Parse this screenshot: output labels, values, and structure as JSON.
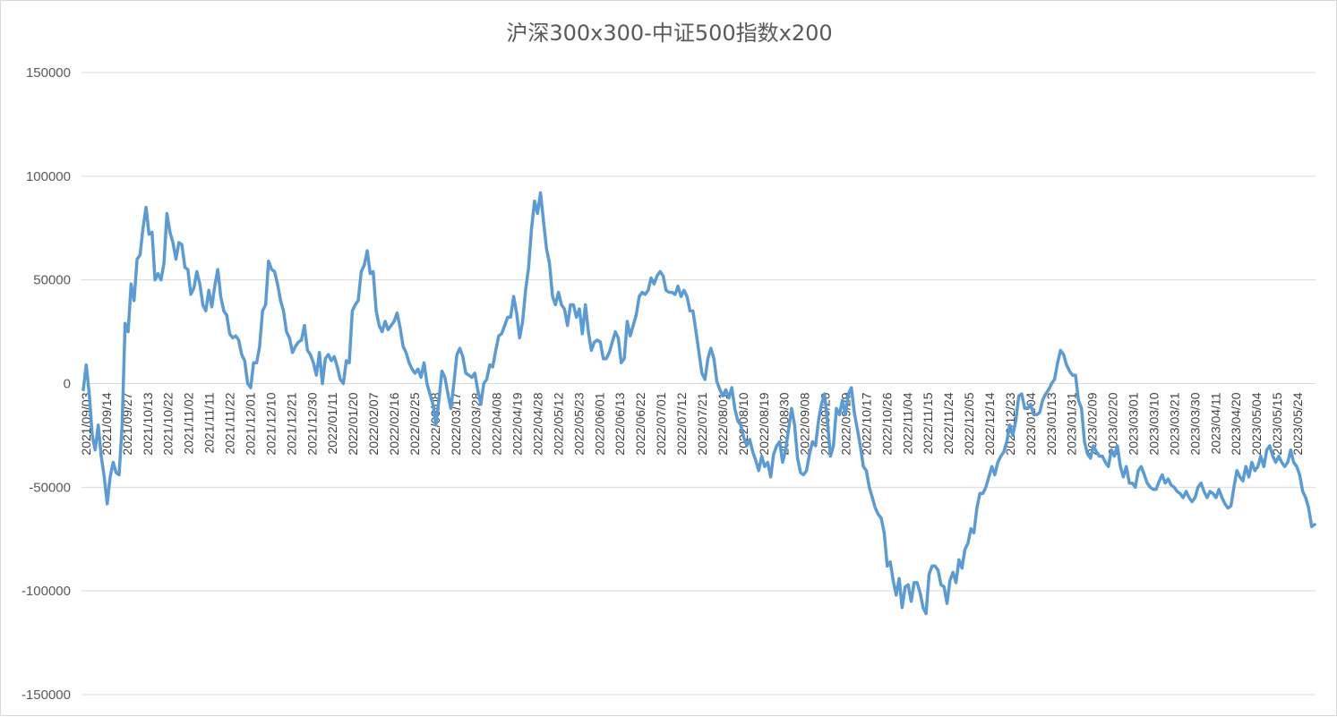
{
  "chart_data": {
    "type": "line",
    "title": "沪深300x300-中证500指数x200",
    "xlabel": "",
    "ylabel": "",
    "ylim": [
      -150000,
      150000
    ],
    "yticks": [
      150000,
      100000,
      50000,
      0,
      -50000,
      -100000,
      -150000
    ],
    "grid": true,
    "legend": "none",
    "x_tick_labels": [
      "2021/09/03",
      "2021/09/14",
      "2021/09/27",
      "2021/10/13",
      "2021/10/22",
      "2021/11/02",
      "2021/11/11",
      "2021/11/22",
      "2021/12/01",
      "2021/12/10",
      "2021/12/21",
      "2021/12/30",
      "2022/01/11",
      "2022/01/20",
      "2022/02/07",
      "2022/02/16",
      "2022/02/25",
      "2022/03/08",
      "2022/03/17",
      "2022/03/28",
      "2022/04/08",
      "2022/04/19",
      "2022/04/28",
      "2022/05/12",
      "2022/05/23",
      "2022/06/01",
      "2022/06/13",
      "2022/06/22",
      "2022/07/01",
      "2022/07/12",
      "2022/07/21",
      "2022/08/01",
      "2022/08/10",
      "2022/08/19",
      "2022/08/30",
      "2022/09/08",
      "2022/09/20",
      "2022/09/29",
      "2022/10/17",
      "2022/10/26",
      "2022/11/04",
      "2022/11/15",
      "2022/11/24",
      "2022/12/05",
      "2022/12/14",
      "2022/12/23",
      "2023/01/04",
      "2023/01/13",
      "2023/01/31",
      "2023/02/09",
      "2023/02/20",
      "2023/03/01",
      "2023/03/10",
      "2023/03/21",
      "2023/03/30",
      "2023/04/11",
      "2023/04/20",
      "2023/05/04",
      "2023/05/15",
      "2023/05/24"
    ],
    "color": "#5b9bd5",
    "series": [
      {
        "values": [
          -3000,
          9000,
          -5000,
          -25000,
          -32000,
          -20000,
          -35000,
          -45000,
          -58000,
          -45000,
          -38000,
          -43000,
          -44000,
          -20000,
          29000,
          25000,
          48000,
          40000,
          60000,
          62000,
          75000,
          85000,
          72000,
          73000,
          50000,
          53000,
          50000,
          58000,
          82000,
          73000,
          68000,
          60000,
          68000,
          67000,
          56000,
          55000,
          43000,
          46000,
          54000,
          48000,
          38000,
          35000,
          45000,
          37000,
          47000,
          55000,
          42000,
          35000,
          33000,
          24000,
          22000,
          23000,
          21000,
          14000,
          11000,
          0,
          -2000,
          10000,
          10000,
          18000,
          35000,
          38000,
          59000,
          55000,
          54000,
          48000,
          40000,
          35000,
          25000,
          22000,
          15000,
          18000,
          20000,
          21000,
          28000,
          16000,
          14000,
          10000,
          4000,
          15000,
          0,
          12000,
          14000,
          11000,
          13000,
          8000,
          2000,
          0,
          11000,
          10000,
          35000,
          38000,
          40000,
          54000,
          57000,
          64000,
          53000,
          54000,
          35000,
          28000,
          25000,
          30000,
          26000,
          28000,
          30000,
          34000,
          27000,
          18000,
          15000,
          10000,
          7000,
          5000,
          7000,
          3000,
          10000,
          0,
          -5000,
          -10000,
          -20000,
          -8000,
          6000,
          3000,
          -5000,
          -12000,
          0,
          14000,
          17000,
          13000,
          5000,
          4000,
          3000,
          5000,
          -3000,
          -10000,
          0,
          2000,
          9000,
          8000,
          16000,
          23000,
          24000,
          28000,
          32000,
          32000,
          42000,
          34000,
          22000,
          30000,
          45000,
          56000,
          75000,
          88000,
          82000,
          92000,
          78000,
          65000,
          58000,
          42000,
          38000,
          44000,
          38000,
          36000,
          28000,
          38000,
          38000,
          32000,
          36000,
          24000,
          38000,
          25000,
          16000,
          20000,
          21000,
          20000,
          12000,
          12000,
          15000,
          20000,
          25000,
          22000,
          10000,
          12000,
          30000,
          23000,
          28000,
          33000,
          42000,
          44000,
          43000,
          45000,
          51000,
          48000,
          52000,
          54000,
          52000,
          45000,
          44000,
          44000,
          43000,
          47000,
          42000,
          45000,
          42000,
          35000,
          35000,
          25000,
          15000,
          5000,
          2000,
          12000,
          17000,
          12000,
          1000,
          -3000,
          -6000,
          -3000,
          -7000,
          -2000,
          -12000,
          -18000,
          -20000,
          -26000,
          -30000,
          -27000,
          -33000,
          -37000,
          -42000,
          -35000,
          -40000,
          -38000,
          -45000,
          -34000,
          -30000,
          -28000,
          -38000,
          -32000,
          -22000,
          -12000,
          -20000,
          -36000,
          -43000,
          -44000,
          -42000,
          -34000,
          -28000,
          -30000,
          -18000,
          -10000,
          -5000,
          -18000,
          -35000,
          -30000,
          -12000,
          -15000,
          -8000,
          -15000,
          -5000,
          -2000,
          -14000,
          -22000,
          -30000,
          -40000,
          -42000,
          -50000,
          -55000,
          -60000,
          -63000,
          -65000,
          -72000,
          -88000,
          -86000,
          -95000,
          -102000,
          -94000,
          -108000,
          -98000,
          -97000,
          -105000,
          -96000,
          -96000,
          -101000,
          -108000,
          -111000,
          -92000,
          -88000,
          -88000,
          -90000,
          -97000,
          -98000,
          -106000,
          -95000,
          -91000,
          -96000,
          -85000,
          -89000,
          -80000,
          -77000,
          -70000,
          -72000,
          -60000,
          -53000,
          -53000,
          -50000,
          -45000,
          -40000,
          -44000,
          -38000,
          -35000,
          -33000,
          -28000,
          -20000,
          -25000,
          -18000,
          -6000,
          -5000,
          -12000,
          -12000,
          -10000,
          -15000,
          -15000,
          -14000,
          -8000,
          -5000,
          -3000,
          0,
          2000,
          10000,
          16000,
          14000,
          9000,
          6000,
          4000,
          4000,
          -8000,
          -12000,
          -28000,
          -34000,
          -36000,
          -30000,
          -33000,
          -35000,
          -35000,
          -38000,
          -40000,
          -32000,
          -35000,
          -30000,
          -40000,
          -45000,
          -40000,
          -48000,
          -48000,
          -50000,
          -42000,
          -40000,
          -44000,
          -48000,
          -50000,
          -51000,
          -51000,
          -47000,
          -44000,
          -48000,
          -46000,
          -49000,
          -50000,
          -52000,
          -53000,
          -55000,
          -52000,
          -55000,
          -57000,
          -55000,
          -50000,
          -48000,
          -52000,
          -55000,
          -52000,
          -53000,
          -55000,
          -51000,
          -55000,
          -58000,
          -60000,
          -59000,
          -50000,
          -42000,
          -45000,
          -47000,
          -40000,
          -45000,
          -38000,
          -42000,
          -40000,
          -35000,
          -40000,
          -32000,
          -30000,
          -35000,
          -38000,
          -35000,
          -38000,
          -40000,
          -38000,
          -32000,
          -38000,
          -40000,
          -44000,
          -52000,
          -55000,
          -60000,
          -69000,
          -68000
        ]
      }
    ]
  }
}
